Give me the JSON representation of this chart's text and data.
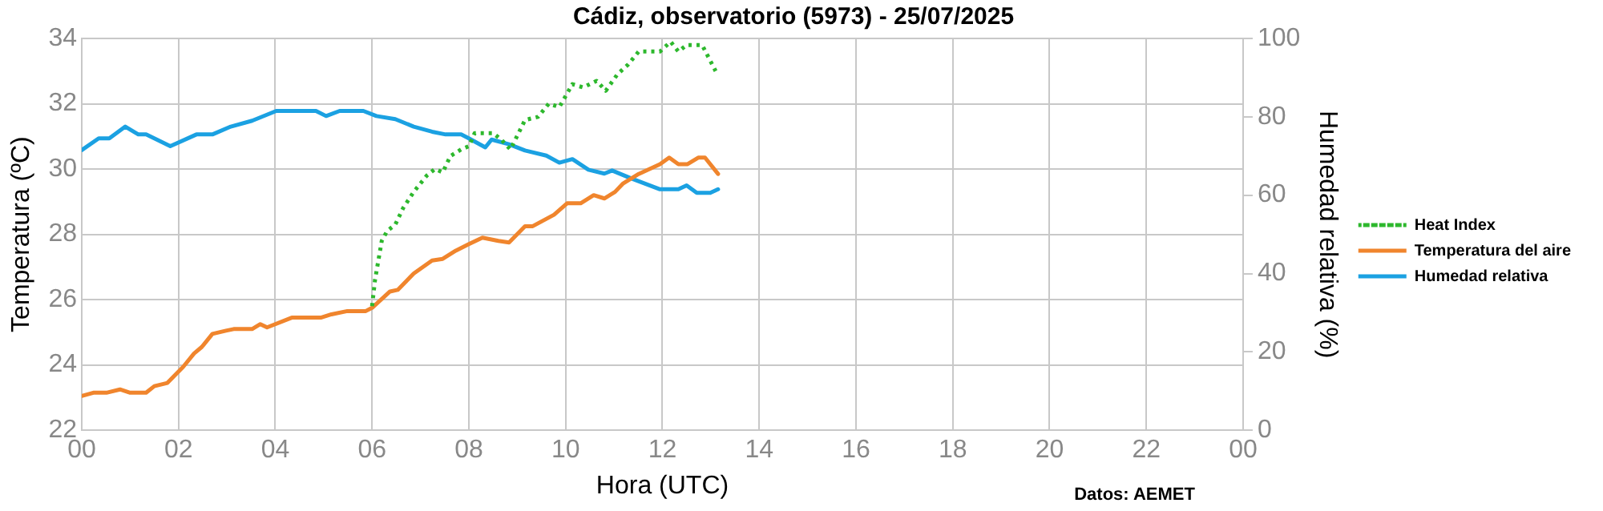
{
  "chart_data": {
    "type": "line",
    "title": "Cádiz, observatorio (5973) - 25/07/2025",
    "xlabel": "Hora (UTC)",
    "ylabel": "Temperatura (ºC)",
    "y2label": "Humedad relativa (%)",
    "xlim": [
      0,
      24
    ],
    "xticks": [
      {
        "value": 0,
        "label": "00"
      },
      {
        "value": 2,
        "label": "02"
      },
      {
        "value": 4,
        "label": "04"
      },
      {
        "value": 6,
        "label": "06"
      },
      {
        "value": 8,
        "label": "08"
      },
      {
        "value": 10,
        "label": "10"
      },
      {
        "value": 12,
        "label": "12"
      },
      {
        "value": 14,
        "label": "14"
      },
      {
        "value": 16,
        "label": "16"
      },
      {
        "value": 18,
        "label": "18"
      },
      {
        "value": 20,
        "label": "20"
      },
      {
        "value": 22,
        "label": "22"
      },
      {
        "value": 24,
        "label": "00"
      }
    ],
    "ylim": [
      22,
      34
    ],
    "yticks": [
      22,
      24,
      26,
      28,
      30,
      32,
      34
    ],
    "y2lim": [
      0,
      100
    ],
    "y2ticks": [
      0,
      20,
      40,
      60,
      80,
      100
    ],
    "grid": true,
    "legend": "right",
    "marker": "none",
    "series": [
      {
        "name": "Heat Index",
        "color": "#2db82d",
        "line_style": "dotted",
        "x": [
          6.0,
          6.06,
          6.2,
          6.31,
          6.48,
          6.64,
          6.86,
          7.13,
          7.3,
          7.46,
          7.62,
          7.84,
          8.0,
          8.12,
          8.5,
          8.67,
          8.86,
          9.16,
          9.43,
          9.65,
          9.87,
          10.14,
          10.36,
          10.64,
          10.83,
          11.07,
          11.29,
          11.51,
          11.95,
          12.17,
          12.33,
          12.5,
          12.82,
          13.1
        ],
        "values": [
          25.8,
          26.6,
          27.8,
          28.1,
          28.3,
          28.8,
          29.3,
          29.8,
          30.0,
          29.9,
          30.4,
          30.6,
          30.7,
          31.1,
          31.1,
          30.9,
          30.6,
          31.5,
          31.6,
          32.0,
          31.9,
          32.6,
          32.5,
          32.7,
          32.4,
          32.9,
          33.2,
          33.6,
          33.6,
          33.9,
          33.6,
          33.8,
          33.8,
          33.0
        ]
      },
      {
        "name": "Temperatura del aire",
        "color": "#f0852d",
        "line_style": "solid",
        "x": [
          0,
          0.24,
          0.51,
          0.79,
          1.0,
          1.33,
          1.5,
          1.77,
          2.1,
          2.32,
          2.48,
          2.7,
          2.98,
          3.14,
          3.52,
          3.69,
          3.83,
          4.34,
          4.94,
          5.16,
          5.49,
          5.87,
          6.0,
          6.37,
          6.53,
          6.86,
          7.24,
          7.46,
          7.73,
          8.0,
          8.28,
          8.61,
          8.83,
          9.16,
          9.32,
          9.76,
          10.03,
          10.31,
          10.58,
          10.8,
          11.02,
          11.18,
          11.51,
          11.95,
          12.14,
          12.33,
          12.52,
          12.74,
          12.88,
          13.15
        ],
        "values": [
          23.05,
          23.15,
          23.15,
          23.25,
          23.15,
          23.15,
          23.35,
          23.45,
          23.95,
          24.35,
          24.55,
          24.95,
          25.05,
          25.1,
          25.1,
          25.25,
          25.15,
          25.45,
          25.45,
          25.55,
          25.65,
          25.65,
          25.75,
          26.25,
          26.3,
          26.8,
          27.2,
          27.25,
          27.5,
          27.7,
          27.9,
          27.8,
          27.75,
          28.25,
          28.25,
          28.6,
          28.95,
          28.95,
          29.2,
          29.1,
          29.3,
          29.55,
          29.85,
          30.15,
          30.35,
          30.15,
          30.15,
          30.35,
          30.35,
          29.85
        ]
      },
      {
        "name": "Humedad relativa",
        "color": "#1ba1e2",
        "line_style": "solid",
        "axis": "y2",
        "x": [
          0,
          0.35,
          0.57,
          0.9,
          1.17,
          1.33,
          1.83,
          2.37,
          2.7,
          3.08,
          3.52,
          4.02,
          4.84,
          5.05,
          5.33,
          5.82,
          6.09,
          6.48,
          6.86,
          7.24,
          7.52,
          7.84,
          8.0,
          8.34,
          8.47,
          8.83,
          9.16,
          9.6,
          9.87,
          10.14,
          10.47,
          10.8,
          10.96,
          11.35,
          11.95,
          12.33,
          12.5,
          12.71,
          12.99,
          13.15
        ],
        "values": [
          71.5,
          74.5,
          74.5,
          77.5,
          75.5,
          75.5,
          72.5,
          75.5,
          75.5,
          77.5,
          79,
          81.5,
          81.5,
          80.2,
          81.5,
          81.5,
          80.2,
          79.4,
          77.5,
          76.2,
          75.5,
          75.5,
          74.5,
          72.2,
          74.2,
          73,
          71.4,
          70.1,
          68.3,
          69.2,
          66.5,
          65.5,
          66.3,
          64.3,
          61.5,
          61.5,
          62.5,
          60.6,
          60.6,
          61.5
        ]
      }
    ],
    "annotations": [
      "Datos: AEMET"
    ]
  }
}
